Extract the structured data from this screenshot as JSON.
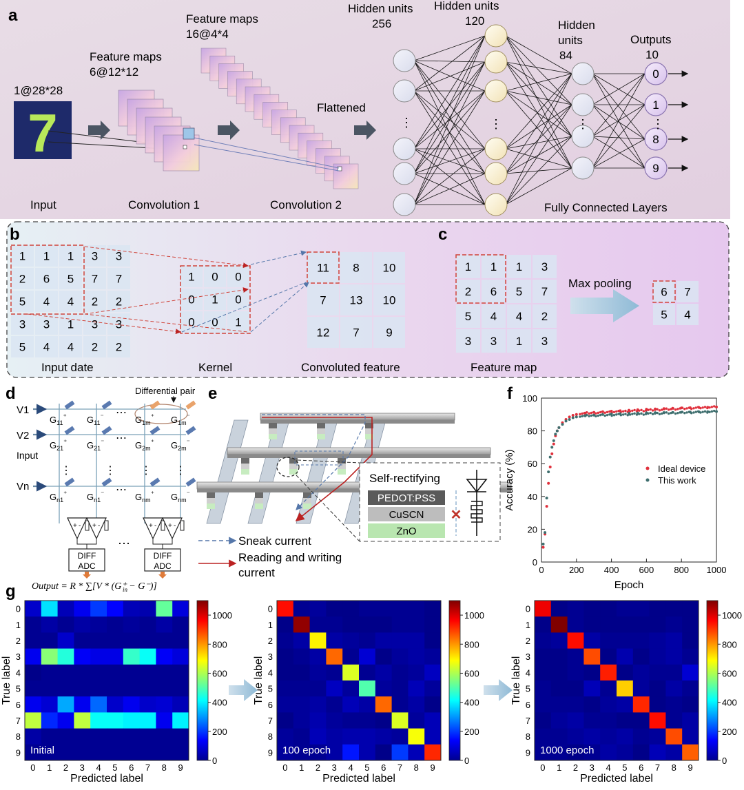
{
  "panel_a": {
    "letter": "a",
    "input_label": "Input",
    "input_size": "1@28*28",
    "input_digit": "7",
    "fm1_title": "Feature maps",
    "fm1_size": "6@12*12",
    "fm2_title": "Feature maps",
    "fm2_size": "16@4*4",
    "flattened": "Flattened",
    "conv1": "Convolution 1",
    "conv2": "Convolution 2",
    "hidden1_title": "Hidden units",
    "hidden1_count": "256",
    "hidden2_title": "Hidden units",
    "hidden2_count": "120",
    "hidden3_title1": "Hidden",
    "hidden3_title2": "units",
    "hidden3_count": "84",
    "outputs_title": "Outputs",
    "outputs_count": "10",
    "output_nodes": [
      "0",
      "1",
      "8",
      "9"
    ],
    "fc_label": "Fully Connected Layers",
    "ellipsis": "⋮"
  },
  "panel_b": {
    "letter": "b",
    "input_matrix": [
      [
        "1",
        "1",
        "1",
        "3",
        "3"
      ],
      [
        "2",
        "6",
        "5",
        "7",
        "7"
      ],
      [
        "5",
        "4",
        "4",
        "2",
        "2"
      ],
      [
        "3",
        "3",
        "1",
        "3",
        "3"
      ],
      [
        "5",
        "4",
        "4",
        "2",
        "2"
      ]
    ],
    "input_label": "Input date",
    "kernel": [
      [
        "1",
        "0",
        "0"
      ],
      [
        "0",
        "1",
        "0"
      ],
      [
        "0",
        "0",
        "1"
      ]
    ],
    "kernel_label": "Kernel",
    "conv_matrix": [
      [
        "11",
        "8",
        "10"
      ],
      [
        "7",
        "13",
        "10"
      ],
      [
        "12",
        "7",
        "9"
      ]
    ],
    "conv_label": "Convoluted feature"
  },
  "panel_c": {
    "letter": "c",
    "feature_map": [
      [
        "1",
        "1",
        "1",
        "3"
      ],
      [
        "2",
        "6",
        "5",
        "7"
      ],
      [
        "5",
        "4",
        "4",
        "2"
      ],
      [
        "3",
        "3",
        "1",
        "3"
      ]
    ],
    "feature_label": "Feature map",
    "op_label": "Max pooling",
    "pooled": [
      [
        "6",
        "7"
      ],
      [
        "5",
        "4"
      ]
    ]
  },
  "panel_d": {
    "letter": "d",
    "diff_pair": "Differential pair",
    "rows": [
      "V1",
      "V2",
      "Vn"
    ],
    "input_label": "Input",
    "adc_line1": "DIFF",
    "adc_line2": "ADC",
    "formula": "Output = R * ∑[V   * (G⁺ − G⁻)]",
    "formula_sub": "in",
    "g_labels": [
      [
        "G11+",
        "G11-",
        "G1m+",
        "G1m-"
      ],
      [
        "G21+",
        "G21-",
        "G2m+",
        "G2m-"
      ],
      [
        "Gn1+",
        "Gn1-",
        "Gnm+",
        "Gnm-"
      ]
    ],
    "ellipsis": "⋯",
    "vellipsis": "⋮"
  },
  "panel_e": {
    "letter": "e",
    "self_rect": "Self-rectifying",
    "layers": [
      "PEDOT:PSS",
      "CuSCN",
      "ZnO"
    ],
    "sneak": "Sneak current",
    "rw_line1": "Reading and writing",
    "rw_line2": "current"
  },
  "panel_f": {
    "letter": "f",
    "chart_data": {
      "type": "scatter",
      "xlabel": "Epoch",
      "ylabel": "Accuracy (%)",
      "xlim": [
        0,
        1000
      ],
      "ylim": [
        0,
        100
      ],
      "xticks": [
        "0",
        "200",
        "400",
        "600",
        "800",
        "1000"
      ],
      "yticks": [
        "0",
        "20",
        "40",
        "60",
        "80",
        "100"
      ],
      "legend": "right",
      "series": [
        {
          "name": "Ideal device",
          "color": "#e0303c",
          "x": [
            10,
            20,
            30,
            40,
            50,
            60,
            70,
            80,
            90,
            100,
            120,
            140,
            160,
            180,
            200,
            250,
            300,
            350,
            400,
            450,
            500,
            550,
            600,
            650,
            700,
            750,
            800,
            850,
            900,
            950,
            1000
          ],
          "y": [
            9,
            17,
            34,
            48,
            58,
            66,
            72,
            77,
            80,
            82,
            85,
            87,
            88.5,
            89.5,
            90,
            90.8,
            91.3,
            91.7,
            92,
            92.3,
            92.6,
            92.9,
            93.2,
            93.4,
            93.6,
            93.8,
            94,
            94.1,
            94.3,
            94.4,
            94.6
          ]
        },
        {
          "name": "This work",
          "color": "#3e6e6e",
          "x": [
            10,
            20,
            30,
            40,
            50,
            60,
            70,
            80,
            90,
            100,
            120,
            140,
            160,
            180,
            200,
            250,
            300,
            350,
            400,
            450,
            500,
            550,
            600,
            650,
            700,
            750,
            800,
            850,
            900,
            950,
            1000
          ],
          "y": [
            11,
            18,
            39,
            55,
            64,
            70,
            74,
            78,
            80,
            82,
            84,
            86,
            87,
            88,
            88.5,
            89.2,
            89.6,
            90,
            90.3,
            90.5,
            90.7,
            90.9,
            91,
            91.1,
            91.2,
            91.3,
            91.4,
            91.5,
            91.6,
            91.7,
            91.8
          ]
        }
      ]
    }
  },
  "panel_g": {
    "letter": "g",
    "xlabel": "Predicted label",
    "ylabel": "True label",
    "ticks": [
      "0",
      "1",
      "2",
      "3",
      "4",
      "5",
      "6",
      "7",
      "8",
      "9"
    ],
    "colorbar_ticks": [
      "0",
      "200",
      "400",
      "600",
      "800",
      "1000"
    ],
    "heatmaps": [
      {
        "title": "Initial",
        "values": [
          [
            80,
            380,
            60,
            120,
            200,
            140,
            60,
            50,
            520,
            100
          ],
          [
            20,
            40,
            20,
            40,
            30,
            20,
            30,
            20,
            40,
            20
          ],
          [
            20,
            20,
            80,
            20,
            20,
            20,
            20,
            20,
            20,
            20
          ],
          [
            120,
            560,
            450,
            130,
            110,
            110,
            470,
            420,
            130,
            100
          ],
          [
            10,
            20,
            20,
            20,
            20,
            20,
            20,
            20,
            20,
            20
          ],
          [
            20,
            20,
            20,
            20,
            20,
            20,
            20,
            20,
            20,
            20
          ],
          [
            120,
            90,
            320,
            120,
            250,
            80,
            120,
            80,
            90,
            60
          ],
          [
            620,
            180,
            120,
            620,
            420,
            420,
            400,
            400,
            120,
            400
          ],
          [
            40,
            20,
            20,
            20,
            20,
            20,
            20,
            20,
            20,
            20
          ],
          [
            20,
            20,
            20,
            20,
            20,
            20,
            20,
            20,
            20,
            20
          ]
        ]
      },
      {
        "title": "100 epoch",
        "values": [
          [
            950,
            20,
            30,
            10,
            10,
            20,
            20,
            20,
            20,
            10
          ],
          [
            10,
            1080,
            20,
            20,
            10,
            10,
            10,
            20,
            20,
            10
          ],
          [
            20,
            40,
            700,
            40,
            30,
            20,
            40,
            40,
            40,
            10
          ],
          [
            10,
            20,
            40,
            850,
            20,
            90,
            10,
            30,
            40,
            30
          ],
          [
            10,
            10,
            30,
            20,
            650,
            20,
            40,
            20,
            30,
            70
          ],
          [
            20,
            20,
            20,
            70,
            30,
            500,
            30,
            20,
            60,
            30
          ],
          [
            30,
            30,
            40,
            20,
            60,
            40,
            850,
            20,
            40,
            10
          ],
          [
            10,
            30,
            50,
            30,
            20,
            20,
            10,
            650,
            30,
            60
          ],
          [
            30,
            20,
            60,
            40,
            50,
            50,
            40,
            30,
            680,
            60
          ],
          [
            30,
            20,
            20,
            40,
            160,
            50,
            10,
            200,
            60,
            920
          ]
        ]
      },
      {
        "title": "1000 epoch",
        "values": [
          [
            980,
            10,
            20,
            10,
            10,
            20,
            20,
            10,
            10,
            10
          ],
          [
            10,
            1110,
            20,
            10,
            10,
            10,
            10,
            10,
            20,
            10
          ],
          [
            20,
            30,
            950,
            40,
            20,
            20,
            20,
            30,
            40,
            10
          ],
          [
            10,
            10,
            20,
            880,
            10,
            50,
            10,
            30,
            40,
            20
          ],
          [
            10,
            10,
            20,
            10,
            930,
            10,
            30,
            20,
            20,
            90
          ],
          [
            20,
            10,
            10,
            60,
            20,
            740,
            30,
            10,
            40,
            20
          ],
          [
            20,
            20,
            20,
            10,
            30,
            40,
            920,
            10,
            20,
            10
          ],
          [
            10,
            30,
            40,
            20,
            20,
            10,
            10,
            950,
            20,
            40
          ],
          [
            20,
            20,
            30,
            40,
            30,
            40,
            20,
            30,
            880,
            40
          ],
          [
            20,
            20,
            10,
            20,
            40,
            30,
            10,
            60,
            40,
            860
          ]
        ]
      }
    ]
  }
}
